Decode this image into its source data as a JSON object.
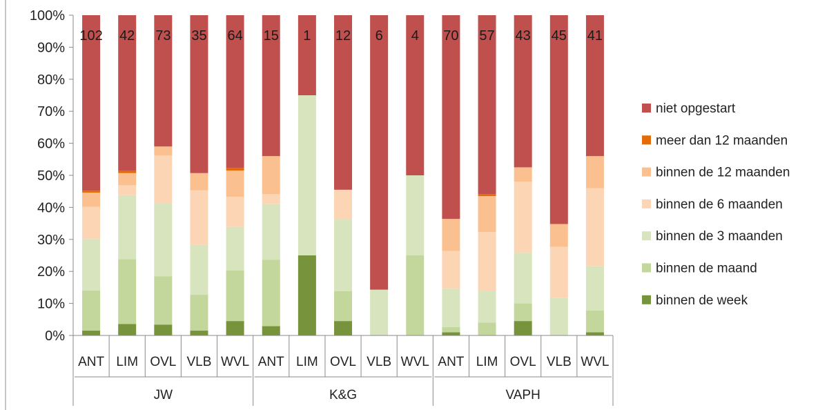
{
  "chart_data": {
    "type": "bar",
    "stacked": true,
    "normalized": true,
    "title": "",
    "xlabel": "",
    "ylabel": "",
    "ylim": [
      0,
      100
    ],
    "y_ticks": [
      "0%",
      "10%",
      "20%",
      "30%",
      "40%",
      "50%",
      "60%",
      "70%",
      "80%",
      "90%",
      "100%"
    ],
    "grid": false,
    "legend_position": "right",
    "groups": [
      {
        "label": "JW",
        "categories": [
          "ANT",
          "LIM",
          "OVL",
          "VLB",
          "WVL"
        ]
      },
      {
        "label": "K&G",
        "categories": [
          "ANT",
          "LIM",
          "OVL",
          "VLB",
          "WVL"
        ]
      },
      {
        "label": "VAPH",
        "categories": [
          "ANT",
          "LIM",
          "OVL",
          "VLB",
          "WVL"
        ]
      }
    ],
    "bar_totals": [
      "102",
      "42",
      "73",
      "35",
      "64",
      "15",
      "1",
      "12",
      "6",
      "4",
      "70",
      "57",
      "43",
      "45",
      "41"
    ],
    "series": [
      {
        "name": "binnen de week",
        "color": "#77933c",
        "values": [
          1.5,
          3.6,
          3.4,
          1.5,
          4.5,
          2.9,
          25,
          4.5,
          0,
          0,
          1,
          0,
          4.5,
          0,
          1
        ]
      },
      {
        "name": "binnen de maand",
        "color": "#c3d69b",
        "values": [
          12.5,
          20.2,
          15.1,
          11.2,
          15.8,
          20.7,
          0,
          9.3,
          0,
          25,
          1.6,
          4,
          5.5,
          0,
          6.8
        ]
      },
      {
        "name": "binnen de 3 maanden",
        "color": "#d7e4bd",
        "values": [
          16.1,
          20,
          22.8,
          15.6,
          13.6,
          17.4,
          50,
          22.6,
          14.3,
          25,
          12,
          10,
          15.8,
          11.8,
          13.8
        ]
      },
      {
        "name": "binnen de 6 maanden",
        "color": "#fcd5b5",
        "values": [
          10.1,
          3.1,
          14.9,
          17,
          9.4,
          3.1,
          0,
          9.1,
          0,
          0,
          11.8,
          18.3,
          22.2,
          15.9,
          24.4
        ]
      },
      {
        "name": "binnen de 12 maanden",
        "color": "#fac090",
        "values": [
          4.4,
          3.8,
          2.8,
          5.4,
          8.2,
          11.9,
          0,
          0,
          0,
          0,
          10,
          11.2,
          4.5,
          7.1,
          10
        ]
      },
      {
        "name": "meer dan 12 maanden",
        "color": "#e36c09",
        "values": [
          0.6,
          0.8,
          0,
          0,
          0.8,
          0,
          0,
          0,
          0,
          0,
          0,
          0.6,
          0,
          0,
          0
        ]
      },
      {
        "name": "niet opgestart",
        "color": "#c0504d",
        "values": [
          54.8,
          48.5,
          41,
          49.3,
          47.7,
          44,
          25,
          54.5,
          85.7,
          50,
          63.6,
          55.9,
          47.5,
          65.2,
          44
        ]
      }
    ]
  }
}
